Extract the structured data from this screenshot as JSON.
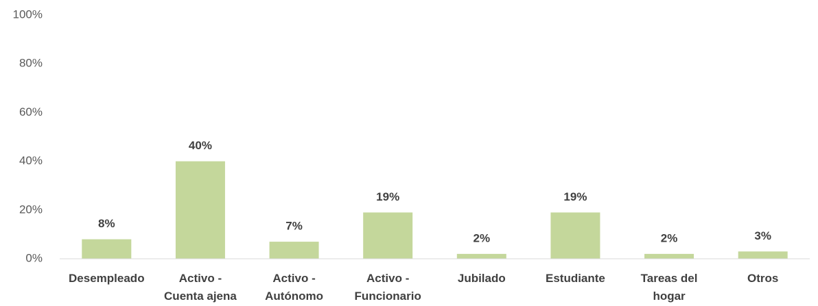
{
  "chart_data": {
    "type": "bar",
    "categories": [
      "Desempleado",
      "Activo - Cuenta ajena",
      "Activo - Autónomo",
      "Activo - Funcionario",
      "Jubilado",
      "Estudiante",
      "Tareas del hogar",
      "Otros"
    ],
    "values": [
      8,
      40,
      7,
      19,
      2,
      19,
      2,
      3
    ],
    "value_labels": [
      "8%",
      "40%",
      "7%",
      "19%",
      "2%",
      "19%",
      "2%",
      "3%"
    ],
    "color": "#c4d79b",
    "ylim": [
      0,
      100
    ],
    "yticks": [
      {
        "value": 0,
        "label": "0%"
      },
      {
        "value": 20,
        "label": "20%"
      },
      {
        "value": 40,
        "label": "40%"
      },
      {
        "value": 60,
        "label": "60%"
      },
      {
        "value": 80,
        "label": "80%"
      },
      {
        "value": 100,
        "label": "100%"
      }
    ],
    "grid": false
  }
}
